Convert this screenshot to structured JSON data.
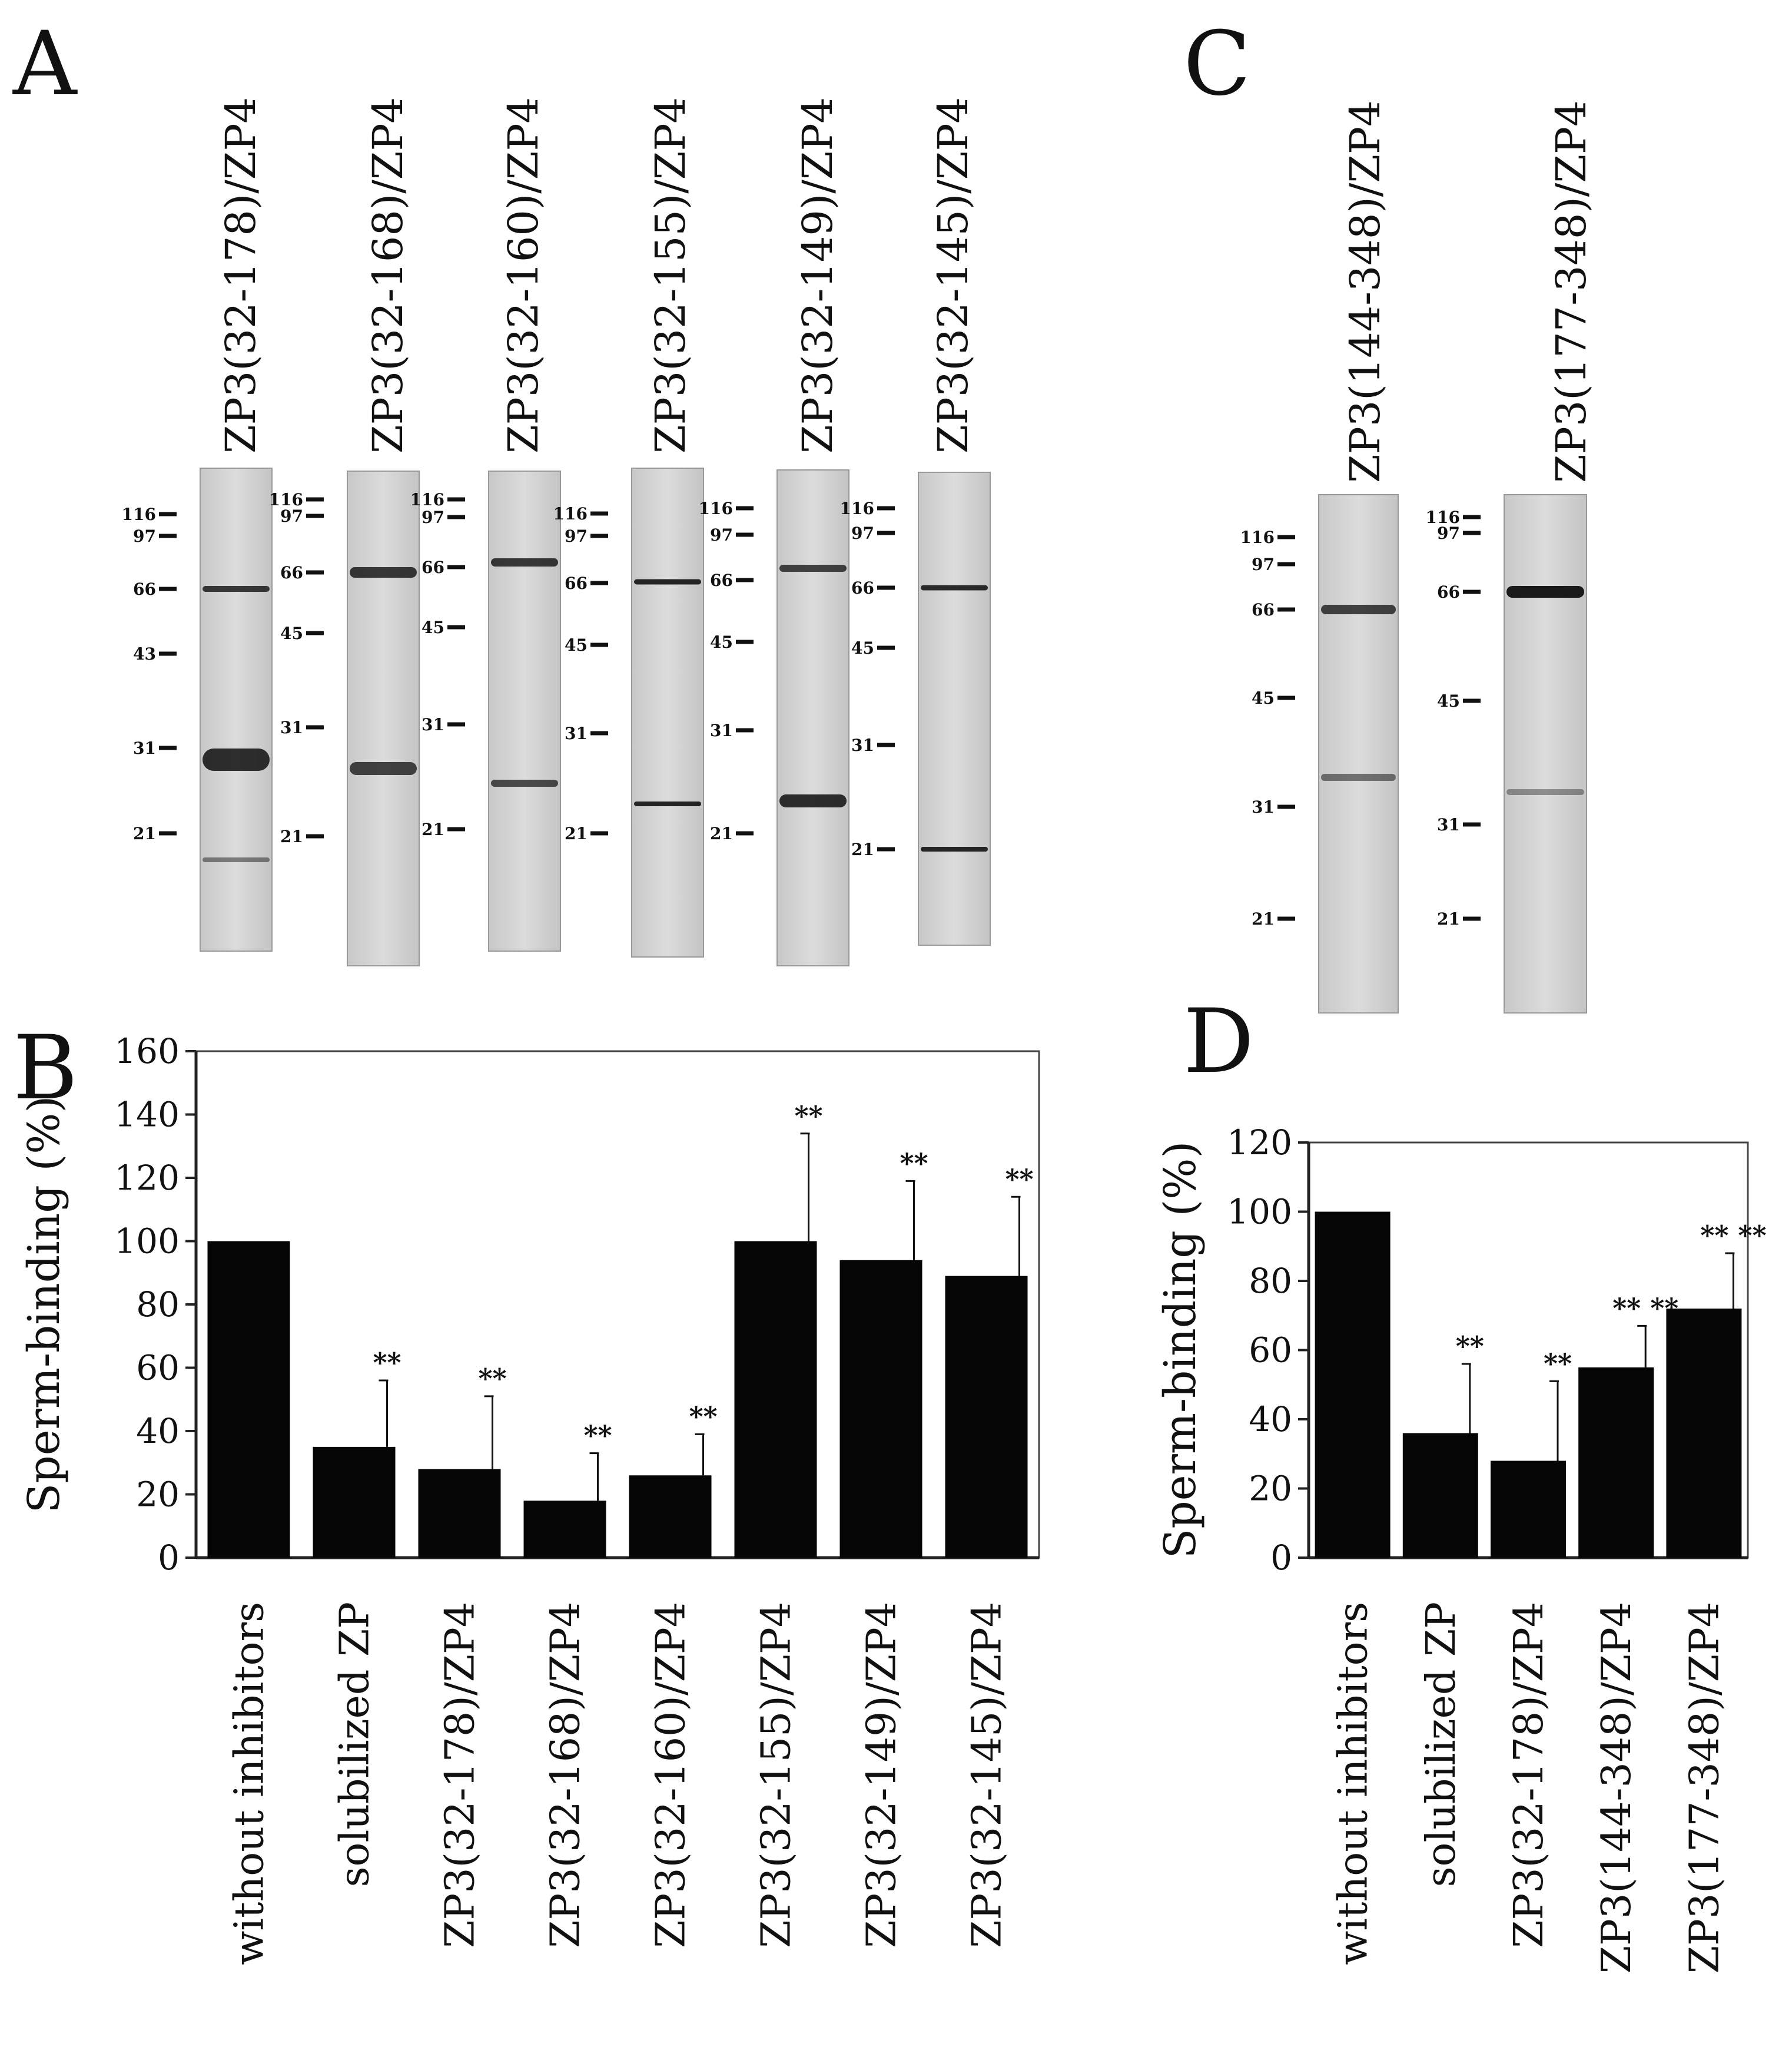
{
  "panels": {
    "A": {
      "letter": "A",
      "gels": [
        {
          "label": "ZP3(32-178)/ZP4",
          "markers": [
            "116",
            "97",
            "66",
            "43",
            "31",
            "21"
          ]
        },
        {
          "label": "ZP3(32-168)/ZP4",
          "markers": [
            "116",
            "97",
            "66",
            "45",
            "31",
            "21"
          ]
        },
        {
          "label": "ZP3(32-160)/ZP4",
          "markers": [
            "116",
            "97",
            "66",
            "45",
            "31",
            "21"
          ]
        },
        {
          "label": "ZP3(32-155)/ZP4",
          "markers": [
            "116",
            "97",
            "66",
            "45",
            "31",
            "21"
          ]
        },
        {
          "label": "ZP3(32-149)/ZP4",
          "markers": [
            "116",
            "97",
            "66",
            "45",
            "31",
            "21"
          ]
        },
        {
          "label": "ZP3(32-145)/ZP4",
          "markers": [
            "116",
            "97",
            "66",
            "45",
            "31",
            "21"
          ]
        }
      ]
    },
    "C": {
      "letter": "C",
      "gels": [
        {
          "label": "ZP3(144-348)/ZP4",
          "markers": [
            "116",
            "97",
            "66",
            "45",
            "31",
            "21"
          ]
        },
        {
          "label": "ZP3(177-348)/ZP4",
          "markers": [
            "116",
            "97",
            "66",
            "45",
            "31",
            "21"
          ]
        }
      ]
    }
  },
  "chart_data": [
    {
      "panel": "B",
      "type": "bar",
      "title": "",
      "ylabel": "Sperm-binding (%)",
      "xlabel": "",
      "ylim": [
        0,
        160
      ],
      "yticks": [
        0,
        20,
        40,
        60,
        80,
        100,
        120,
        140,
        160
      ],
      "categories": [
        "without inhibitors",
        "solubilized ZP",
        "ZP3(32-178)/ZP4",
        "ZP3(32-168)/ZP4",
        "ZP3(32-160)/ZP4",
        "ZP3(32-155)/ZP4",
        "ZP3(32-149)/ZP4",
        "ZP3(32-145)/ZP4"
      ],
      "values": [
        100,
        35,
        28,
        18,
        26,
        100,
        94,
        89
      ],
      "errors": [
        0,
        21,
        23,
        15,
        13,
        34,
        25,
        25
      ],
      "significance": [
        "",
        "**",
        "**",
        "**",
        "**",
        "**",
        "**",
        "**"
      ]
    },
    {
      "panel": "D",
      "type": "bar",
      "title": "",
      "ylabel": "Sperm-binding (%)",
      "xlabel": "",
      "ylim": [
        0,
        120
      ],
      "yticks": [
        0,
        20,
        40,
        60,
        80,
        100,
        120
      ],
      "categories": [
        "without inhibitors",
        "solubilized ZP",
        "ZP3(32-178)/ZP4",
        "ZP3(144-348)/ZP4",
        "ZP3(177-348)/ZP4"
      ],
      "values": [
        100,
        36,
        28,
        55,
        72
      ],
      "errors": [
        0,
        20,
        23,
        12,
        16
      ],
      "significance": [
        "",
        "**",
        "**",
        "** **",
        "** **"
      ]
    }
  ]
}
